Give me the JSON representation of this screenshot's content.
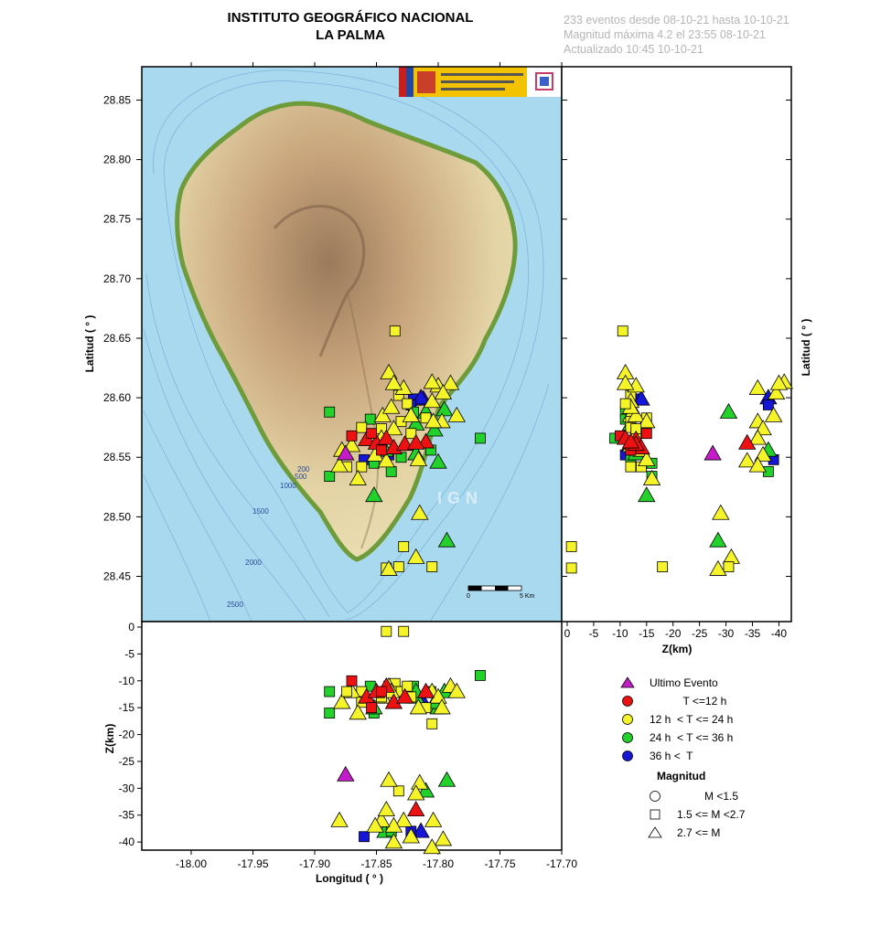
{
  "header": {
    "title_line1": "INSTITUTO GEOGRÁFICO NACIONAL",
    "title_line2": "LA PALMA",
    "info_line1": "233 eventos desde 08-10-21 hasta 10-10-21",
    "info_line2": "Magnitud máxima 4.2 el 23:55 08-10-21",
    "info_line3": "Actualizado   10:45  10-10-21"
  },
  "map": {
    "watermark": "IGN",
    "scale_start": "0",
    "scale_end": "5 Km",
    "depth_contours": [
      "200",
      "500",
      "1000",
      "1500",
      "2000",
      "2500"
    ],
    "colors": {
      "ocean": "#a9d9ee",
      "land_low": "#ece0b3",
      "land_mid": "#c9a57c",
      "land_high": "#9a7a5c",
      "coast": "#7aa040"
    }
  },
  "chart_data": [
    {
      "type": "scatter",
      "name": "map_view",
      "ylabel": "Latitud ( ° )",
      "xlim": [
        -18.04,
        -17.7
      ],
      "ylim": [
        28.412,
        28.878
      ],
      "yticks": [
        "28.45",
        "28.50",
        "28.55",
        "28.60",
        "28.65",
        "28.70",
        "28.75",
        "28.80",
        "28.85"
      ]
    },
    {
      "type": "scatter",
      "name": "depth_vs_latitude",
      "xlabel": "Z(km)",
      "ylabel": "Latitud ( ° )",
      "xlim": [
        0,
        -42
      ],
      "xticks": [
        "0",
        "-5",
        "-10",
        "-15",
        "-20",
        "-25",
        "-30",
        "-35",
        "-40"
      ]
    },
    {
      "type": "scatter",
      "name": "depth_vs_longitude",
      "xlabel": "Longitud ( ° )",
      "ylabel": "Z(km)",
      "ylim": [
        0,
        -41
      ],
      "yticks": [
        "0",
        "-5",
        "-10",
        "-15",
        "-20",
        "-25",
        "-30",
        "-35",
        "-40"
      ],
      "xticks": [
        "-18.00",
        "-17.95",
        "-17.90",
        "-17.85",
        "-17.80",
        "-17.75",
        "-17.70"
      ]
    }
  ],
  "events": [
    {
      "lon": -17.835,
      "lat": 28.656,
      "z": -10.5,
      "c": "y",
      "s": "sq"
    },
    {
      "lon": -17.84,
      "lat": 28.621,
      "z": -11,
      "c": "y",
      "s": "tri"
    },
    {
      "lon": -17.832,
      "lat": 28.602,
      "z": -12,
      "c": "y",
      "s": "sq"
    },
    {
      "lon": -17.82,
      "lat": 28.599,
      "z": -13,
      "c": "b",
      "s": "sq"
    },
    {
      "lon": -17.812,
      "lat": 28.599,
      "z": -14,
      "c": "b",
      "s": "tri"
    },
    {
      "lon": -17.805,
      "lat": 28.597,
      "z": -12,
      "c": "y",
      "s": "tri"
    },
    {
      "lon": -17.8,
      "lat": 28.61,
      "z": -13,
      "c": "y",
      "s": "tri"
    },
    {
      "lon": -17.79,
      "lat": 28.612,
      "z": -11,
      "c": "y",
      "s": "tri"
    },
    {
      "lon": -17.785,
      "lat": 28.585,
      "z": -12,
      "c": "y",
      "s": "tri"
    },
    {
      "lon": -17.795,
      "lat": 28.59,
      "z": -12,
      "c": "g",
      "s": "tri"
    },
    {
      "lon": -17.81,
      "lat": 28.583,
      "z": -15,
      "c": "y",
      "s": "sq"
    },
    {
      "lon": -17.82,
      "lat": 28.588,
      "z": -11,
      "c": "g",
      "s": "sq"
    },
    {
      "lon": -17.83,
      "lat": 28.58,
      "z": -12,
      "c": "y",
      "s": "sq"
    },
    {
      "lon": -17.845,
      "lat": 28.585,
      "z": -13,
      "c": "y",
      "s": "tri"
    },
    {
      "lon": -17.855,
      "lat": 28.582,
      "z": -11,
      "c": "g",
      "s": "sq"
    },
    {
      "lon": -17.862,
      "lat": 28.575,
      "z": -12,
      "c": "y",
      "s": "sq"
    },
    {
      "lon": -17.87,
      "lat": 28.568,
      "z": -10,
      "c": "r",
      "s": "sq"
    },
    {
      "lon": -17.858,
      "lat": 28.565,
      "z": -13,
      "c": "r",
      "s": "tri"
    },
    {
      "lon": -17.85,
      "lat": 28.562,
      "z": -12,
      "c": "r",
      "s": "tri"
    },
    {
      "lon": -17.842,
      "lat": 28.566,
      "z": -11,
      "c": "r",
      "s": "tri"
    },
    {
      "lon": -17.836,
      "lat": 28.558,
      "z": -14,
      "c": "r",
      "s": "tri"
    },
    {
      "lon": -17.846,
      "lat": 28.556,
      "z": -12,
      "c": "r",
      "s": "sq"
    },
    {
      "lon": -17.854,
      "lat": 28.57,
      "z": -15,
      "c": "r",
      "s": "sq"
    },
    {
      "lon": -17.827,
      "lat": 28.561,
      "z": -13,
      "c": "r",
      "s": "tri"
    },
    {
      "lon": -17.81,
      "lat": 28.563,
      "z": -12,
      "c": "r",
      "s": "tri"
    },
    {
      "lon": -17.84,
      "lat": 28.552,
      "z": -11,
      "c": "b",
      "s": "sq"
    },
    {
      "lon": -17.83,
      "lat": 28.55,
      "z": -12,
      "c": "g",
      "s": "sq"
    },
    {
      "lon": -17.818,
      "lat": 28.553,
      "z": -13,
      "c": "g",
      "s": "tri"
    },
    {
      "lon": -17.806,
      "lat": 28.556,
      "z": -12,
      "c": "g",
      "s": "sq"
    },
    {
      "lon": -17.8,
      "lat": 28.546,
      "z": -15,
      "c": "g",
      "s": "tri"
    },
    {
      "lon": -17.852,
      "lat": 28.545,
      "z": -16,
      "c": "g",
      "s": "sq"
    },
    {
      "lon": -17.87,
      "lat": 28.56,
      "z": -12,
      "c": "y",
      "s": "tri"
    },
    {
      "lon": -17.878,
      "lat": 28.556,
      "z": -14,
      "c": "y",
      "s": "tri"
    },
    {
      "lon": -17.874,
      "lat": 28.542,
      "z": -12,
      "c": "y",
      "s": "sq"
    },
    {
      "lon": -17.862,
      "lat": 28.542,
      "z": -14,
      "c": "y",
      "s": "sq"
    },
    {
      "lon": -17.816,
      "lat": 28.548,
      "z": -15,
      "c": "y",
      "s": "tri"
    },
    {
      "lon": -17.822,
      "lat": 28.57,
      "z": -13,
      "c": "y",
      "s": "sq"
    },
    {
      "lon": -17.818,
      "lat": 28.578,
      "z": -12,
      "c": "g",
      "s": "tri"
    },
    {
      "lon": -17.803,
      "lat": 28.573,
      "z": -14,
      "c": "g",
      "s": "tri"
    },
    {
      "lon": -17.797,
      "lat": 28.58,
      "z": -15,
      "c": "y",
      "s": "tri"
    },
    {
      "lon": -17.838,
      "lat": 28.592,
      "z": -12,
      "c": "y",
      "s": "tri"
    },
    {
      "lon": -17.825,
      "lat": 28.595,
      "z": -11,
      "c": "y",
      "s": "sq"
    },
    {
      "lon": -17.846,
      "lat": 28.574,
      "z": -13,
      "c": "y",
      "s": "sq"
    },
    {
      "lon": -17.865,
      "lat": 28.532,
      "z": -16,
      "c": "y",
      "s": "tri"
    },
    {
      "lon": -17.852,
      "lat": 28.518,
      "z": -15,
      "c": "g",
      "s": "tri"
    },
    {
      "lon": -17.888,
      "lat": 28.588,
      "z": -12,
      "c": "g",
      "s": "sq"
    },
    {
      "lon": -17.888,
      "lat": 28.534,
      "z": -16,
      "c": "g",
      "s": "sq"
    },
    {
      "lon": -17.766,
      "lat": 28.566,
      "z": -9,
      "c": "g",
      "s": "sq"
    },
    {
      "lon": -17.875,
      "lat": 28.553,
      "z": -27.5,
      "c": "m",
      "s": "tri"
    },
    {
      "lon": -17.815,
      "lat": 28.503,
      "z": -29,
      "c": "y",
      "s": "tri"
    },
    {
      "lon": -17.793,
      "lat": 28.48,
      "z": -28.5,
      "c": "g",
      "s": "tri"
    },
    {
      "lon": -17.818,
      "lat": 28.466,
      "z": -31,
      "c": "y",
      "s": "tri"
    },
    {
      "lon": -17.832,
      "lat": 28.458,
      "z": -30.5,
      "c": "y",
      "s": "sq"
    },
    {
      "lon": -17.818,
      "lat": 28.562,
      "z": -34,
      "c": "r",
      "s": "tri"
    },
    {
      "lon": -17.81,
      "lat": 28.588,
      "z": -30.5,
      "c": "g",
      "s": "tri"
    },
    {
      "lon": -17.804,
      "lat": 28.58,
      "z": -36,
      "c": "y",
      "s": "tri"
    },
    {
      "lon": -17.814,
      "lat": 28.6,
      "z": -38,
      "c": "b",
      "s": "tri"
    },
    {
      "lon": -17.822,
      "lat": 28.594,
      "z": -38,
      "c": "b",
      "s": "sq"
    },
    {
      "lon": -17.828,
      "lat": 28.608,
      "z": -36,
      "c": "y",
      "s": "tri"
    },
    {
      "lon": -17.836,
      "lat": 28.574,
      "z": -37,
      "c": "y",
      "s": "tri"
    },
    {
      "lon": -17.843,
      "lat": 28.556,
      "z": -38,
      "c": "g",
      "s": "tri"
    },
    {
      "lon": -17.846,
      "lat": 28.566,
      "z": -36,
      "c": "y",
      "s": "tri"
    },
    {
      "lon": -17.851,
      "lat": 28.552,
      "z": -37,
      "c": "y",
      "s": "tri"
    },
    {
      "lon": -17.796,
      "lat": 28.604,
      "z": -39.5,
      "c": "y",
      "s": "tri"
    },
    {
      "lon": -17.805,
      "lat": 28.613,
      "z": -41,
      "c": "y",
      "s": "tri"
    },
    {
      "lon": -17.836,
      "lat": 28.612,
      "z": -40,
      "c": "y",
      "s": "tri"
    },
    {
      "lon": -17.822,
      "lat": 28.585,
      "z": -39,
      "c": "y",
      "s": "tri"
    },
    {
      "lon": -17.842,
      "lat": 28.547,
      "z": -34,
      "c": "y",
      "s": "tri"
    },
    {
      "lon": -17.86,
      "lat": 28.548,
      "z": -39,
      "c": "b",
      "s": "sq"
    },
    {
      "lon": -17.88,
      "lat": 28.543,
      "z": -36,
      "c": "y",
      "s": "tri"
    },
    {
      "lon": -17.838,
      "lat": 28.538,
      "z": -38,
      "c": "g",
      "s": "sq"
    },
    {
      "lon": -17.828,
      "lat": 28.475,
      "z": -0.8,
      "c": "y",
      "s": "sq"
    },
    {
      "lon": -17.842,
      "lat": 28.457,
      "z": -0.8,
      "c": "y",
      "s": "sq"
    },
    {
      "lon": -17.805,
      "lat": 28.458,
      "z": -18,
      "c": "y",
      "s": "sq"
    },
    {
      "lon": -17.84,
      "lat": 28.456,
      "z": -28.5,
      "c": "y",
      "s": "tri"
    }
  ],
  "legend": {
    "items": [
      {
        "color": "#c41cc8",
        "shape": "tri",
        "label": "Ultimo Evento"
      },
      {
        "color": "#ee1111",
        "shape": "circle",
        "label": "           T <=12 h"
      },
      {
        "color": "#f4f428",
        "shape": "circle",
        "label": "12 h  < T <= 24 h"
      },
      {
        "color": "#22d22a",
        "shape": "circle",
        "label": "24 h  < T <= 36 h"
      },
      {
        "color": "#1616d8",
        "shape": "circle",
        "label": "36 h <  T"
      }
    ],
    "magnitude_title": "Magnitud",
    "magnitude_items": [
      {
        "shape": "circle",
        "label": "         M <1.5"
      },
      {
        "shape": "sq",
        "label": "1.5 <= M <2.7"
      },
      {
        "shape": "tri",
        "label": "2.7 <= M"
      }
    ]
  },
  "colors": {
    "r": "#ee1111",
    "y": "#f4f428",
    "g": "#22d22a",
    "b": "#1616d8",
    "m": "#c41cc8"
  }
}
